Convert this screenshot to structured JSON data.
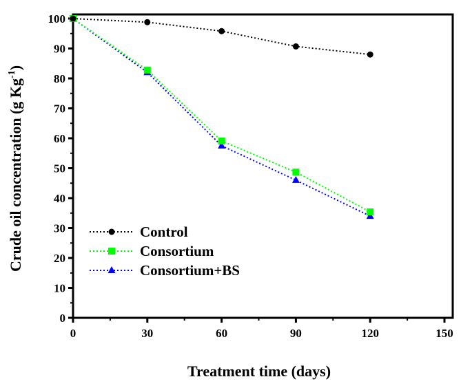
{
  "chart_data": {
    "type": "line",
    "title": "",
    "xlabel": "Treatment time (days)",
    "ylabel": "Crude oil concentration (g Kg",
    "ylabel_sup": "-1",
    "ylabel_end": ")",
    "xlim": [
      0,
      150
    ],
    "ylim": [
      0,
      100
    ],
    "xticks": [
      0,
      30,
      60,
      90,
      120,
      150
    ],
    "yticks": [
      0,
      10,
      20,
      30,
      40,
      50,
      60,
      70,
      80,
      90,
      100
    ],
    "grid": false,
    "legend_position": "bottom-left",
    "x": [
      0,
      30,
      60,
      90,
      120
    ],
    "series": [
      {
        "name": "Control",
        "values": [
          100,
          98.8,
          95.8,
          90.7,
          88.0
        ],
        "color": "#000000",
        "marker": "circle"
      },
      {
        "name": "Consortium",
        "values": [
          100,
          82.8,
          59.1,
          48.7,
          35.4
        ],
        "color": "#00ff00",
        "marker": "square"
      },
      {
        "name": "Consortium+BS",
        "values": [
          100,
          82.0,
          57.5,
          46.0,
          34.0
        ],
        "color": "#0000ff",
        "marker": "triangle"
      }
    ]
  }
}
